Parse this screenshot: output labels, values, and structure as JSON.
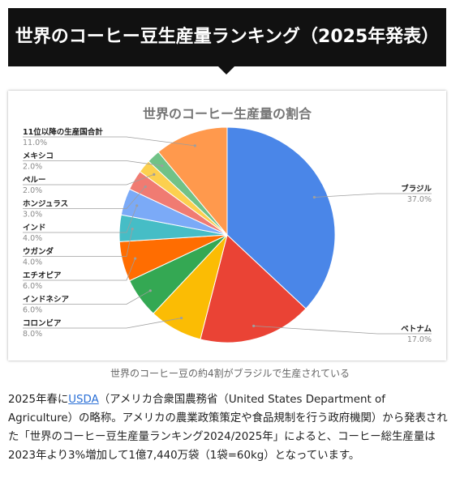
{
  "banner": {
    "title": "世界のコーヒー豆生産量ランキング（2025年発表）"
  },
  "chart_data": {
    "type": "pie",
    "title": "世界のコーヒー生産量の割合",
    "categories": [
      "ブラジル",
      "ベトナム",
      "コロンビア",
      "インドネシア",
      "エチオピア",
      "ウガンダ",
      "インド",
      "ホンジュラス",
      "ペルー",
      "メキシコ",
      "11位以降の生産国合計"
    ],
    "values": [
      37.0,
      17.0,
      8.0,
      6.0,
      6.0,
      4.0,
      4.0,
      3.0,
      2.0,
      2.0,
      11.0
    ],
    "value_labels": [
      "37.0%",
      "17.0%",
      "8.0%",
      "6.0%",
      "6.0%",
      "4.0%",
      "4.0%",
      "3.0%",
      "2.0%",
      "2.0%",
      "11.0%"
    ],
    "colors": [
      "#4a86e8",
      "#ea4335",
      "#fbbc04",
      "#34a853",
      "#ff6d01",
      "#46bdc6",
      "#7baaf7",
      "#f07b72",
      "#fcd04f",
      "#71c287",
      "#ff994d"
    ],
    "legend": "leader-lines"
  },
  "caption": "世界のコーヒー豆の約4割がブラジルで生産されている",
  "body": {
    "prefix": "2025年春に",
    "link": "USDA",
    "suffix": "（アメリカ合衆国農務省（United States Department of Agriculture）の略称。アメリカの農業政策策定や食品規制を行う政府機関）から発表された「世界のコーヒー豆生産量ランキング2024/2025年」によると、コーヒー総生産量は2023年より3%増加して1億7,440万袋（1袋=60kg）となっています。"
  }
}
